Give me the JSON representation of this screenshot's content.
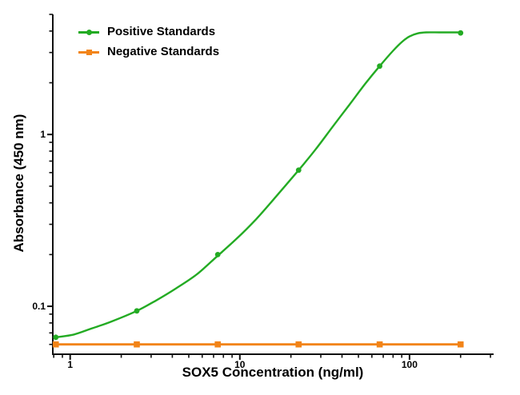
{
  "figure": {
    "background": "#ffffff",
    "axis_color": "#111111"
  },
  "chart_data": {
    "type": "line",
    "title": "",
    "xlabel": "SOX5 Concentration (ng/ml)",
    "ylabel": "Absorbance (450 nm)",
    "x_scale": "log",
    "y_scale": "log",
    "grid": false,
    "legend_position": "top-left",
    "x_axis": {
      "min": 0.79,
      "max": 313,
      "major_ticks": [
        {
          "value": 1,
          "label": "1"
        },
        {
          "value": 10,
          "label": "10"
        },
        {
          "value": 100,
          "label": "100"
        }
      ],
      "minor_ticks": [
        0.8,
        0.9,
        2,
        3,
        4,
        5,
        6,
        7,
        8,
        9,
        20,
        30,
        40,
        50,
        60,
        70,
        80,
        90,
        200,
        300
      ]
    },
    "y_axis": {
      "min": 0.0526,
      "max": 5.0,
      "major_ticks": [
        {
          "value": 0.1,
          "label": "0.1"
        },
        {
          "value": 1,
          "label": "1"
        }
      ],
      "minor_ticks": [
        0.06,
        0.07,
        0.08,
        0.09,
        0.2,
        0.3,
        0.4,
        0.5,
        0.6,
        0.7,
        0.8,
        0.9,
        2,
        3,
        4,
        5
      ]
    },
    "series": [
      {
        "name": "Positive Standards",
        "color": "#23AB23",
        "marker": "circle",
        "x": [
          0.823,
          2.47,
          7.41,
          22.2,
          66.7,
          200
        ],
        "y": [
          0.066,
          0.094,
          0.2,
          0.62,
          2.5,
          3.9
        ],
        "fit_curve": [
          [
            0.823,
            0.066
          ],
          [
            1.05,
            0.0685
          ],
          [
            1.35,
            0.0745
          ],
          [
            1.75,
            0.0815
          ],
          [
            2.47,
            0.094
          ],
          [
            3.2,
            0.108
          ],
          [
            4.2,
            0.127
          ],
          [
            5.6,
            0.154
          ],
          [
            7.41,
            0.197
          ],
          [
            9.6,
            0.248
          ],
          [
            12.5,
            0.322
          ],
          [
            16.5,
            0.44
          ],
          [
            22.2,
            0.62
          ],
          [
            28,
            0.82
          ],
          [
            35,
            1.1
          ],
          [
            44,
            1.48
          ],
          [
            55,
            1.98
          ],
          [
            66.7,
            2.5
          ],
          [
            80,
            3.07
          ],
          [
            90,
            3.45
          ],
          [
            100,
            3.72
          ],
          [
            112,
            3.88
          ],
          [
            125,
            3.93
          ],
          [
            150,
            3.93
          ],
          [
            175,
            3.93
          ],
          [
            200,
            3.93
          ]
        ]
      },
      {
        "name": "Negative Standards",
        "color": "#F28418",
        "marker": "square",
        "x": [
          0.823,
          2.47,
          7.41,
          22.2,
          66.7,
          200
        ],
        "y": [
          0.06,
          0.06,
          0.06,
          0.06,
          0.06,
          0.06
        ]
      }
    ]
  }
}
